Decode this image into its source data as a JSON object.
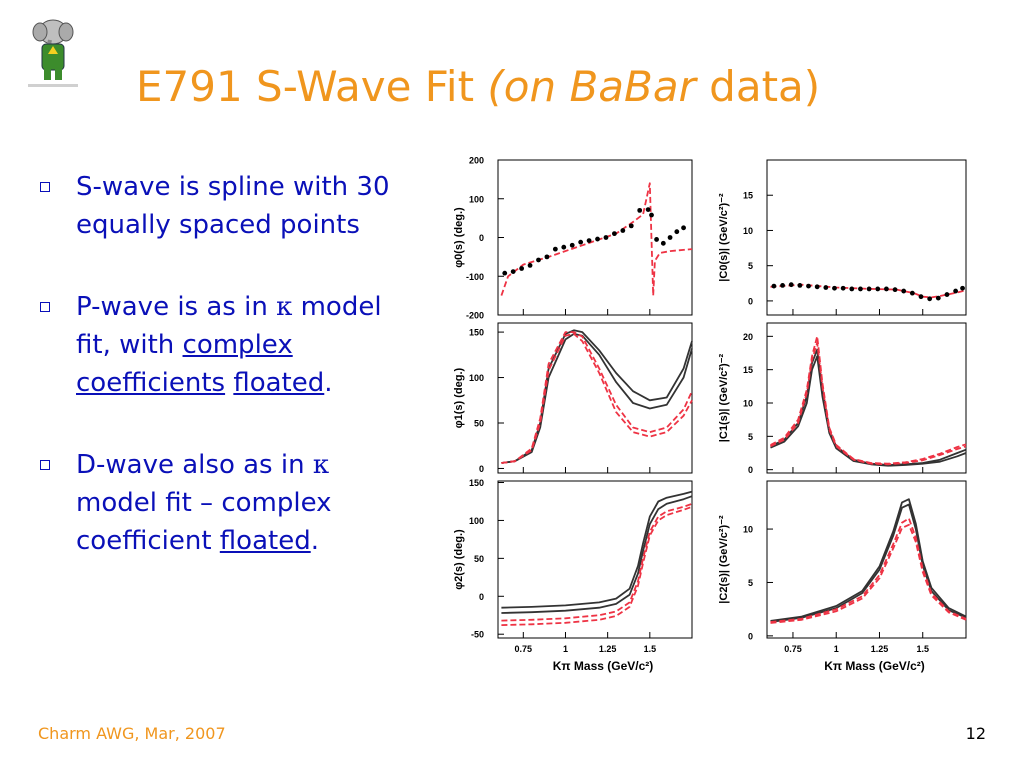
{
  "slide": {
    "title_main": "E791 S-Wave Fit ",
    "title_open": "(on ",
    "title_italic": "BaBar",
    "title_after": " data)",
    "page_number": "12",
    "footer": "Charm AWG, Mar, 2007"
  },
  "colors": {
    "title": "#f0961e",
    "body": "#0a10b8",
    "model_dark": "#333333",
    "model_red": "#ee3344"
  },
  "bullets": [
    {
      "text": "S-wave is spline with 30 equally spaced points"
    },
    {
      "pre": "P-wave is as in ",
      "kappa": "κ",
      "mid": " model fit, with ",
      "link1": "complex coefficients",
      "sep": " ",
      "link2": "floated",
      "post": "."
    },
    {
      "pre": "D-wave also as in ",
      "kappa": "κ",
      "mid": " model fit – complex coefficient ",
      "link": "floated",
      "post": "."
    }
  ],
  "logo": {
    "icon": "babar-elephant-icon"
  },
  "chart_data": [
    {
      "type": "scatter",
      "ylabel": "φ0(s)  (deg.)",
      "ylim": [
        -200,
        200
      ],
      "yticks": [
        -200,
        -100,
        0,
        100,
        200
      ],
      "xlim": [
        0.6,
        1.75
      ],
      "points": [
        [
          0.64,
          -92
        ],
        [
          0.69,
          -88
        ],
        [
          0.74,
          -80
        ],
        [
          0.79,
          -72
        ],
        [
          0.84,
          -58
        ],
        [
          0.89,
          -50
        ],
        [
          0.94,
          -30
        ],
        [
          0.99,
          -25
        ],
        [
          1.04,
          -20
        ],
        [
          1.09,
          -12
        ],
        [
          1.14,
          -8
        ],
        [
          1.19,
          -4
        ],
        [
          1.24,
          0
        ],
        [
          1.29,
          10
        ],
        [
          1.34,
          18
        ],
        [
          1.39,
          30
        ],
        [
          1.44,
          70
        ],
        [
          1.49,
          72
        ],
        [
          1.51,
          58
        ],
        [
          1.54,
          -5
        ],
        [
          1.58,
          -15
        ],
        [
          1.62,
          0
        ],
        [
          1.66,
          15
        ],
        [
          1.7,
          25
        ]
      ],
      "curves": [
        {
          "color": "red",
          "dash": true,
          "x": [
            0.62,
            0.66,
            0.75,
            0.9,
            1.1,
            1.3,
            1.4,
            1.46,
            1.5,
            1.52,
            1.53,
            1.56,
            1.62,
            1.75
          ],
          "y": [
            -150,
            -100,
            -70,
            -50,
            -20,
            10,
            40,
            60,
            140,
            -150,
            -60,
            -40,
            -35,
            -30
          ]
        }
      ]
    },
    {
      "type": "scatter",
      "ylabel": "|C0(s)|  (GeV/c²)⁻²",
      "ylim": [
        -2,
        20
      ],
      "yticks": [
        0,
        5,
        10,
        15
      ],
      "xlim": [
        0.6,
        1.75
      ],
      "points": [
        [
          0.64,
          2.1
        ],
        [
          0.69,
          2.2
        ],
        [
          0.74,
          2.3
        ],
        [
          0.79,
          2.2
        ],
        [
          0.84,
          2.1
        ],
        [
          0.89,
          2.0
        ],
        [
          0.94,
          1.9
        ],
        [
          0.99,
          1.8
        ],
        [
          1.04,
          1.8
        ],
        [
          1.09,
          1.7
        ],
        [
          1.14,
          1.7
        ],
        [
          1.19,
          1.7
        ],
        [
          1.24,
          1.7
        ],
        [
          1.29,
          1.7
        ],
        [
          1.34,
          1.6
        ],
        [
          1.39,
          1.4
        ],
        [
          1.44,
          1.1
        ],
        [
          1.49,
          0.6
        ],
        [
          1.54,
          0.3
        ],
        [
          1.59,
          0.4
        ],
        [
          1.64,
          0.9
        ],
        [
          1.69,
          1.4
        ],
        [
          1.73,
          1.8
        ]
      ],
      "curves": [
        {
          "color": "red",
          "dash": true,
          "x": [
            0.62,
            0.8,
            1.0,
            1.2,
            1.35,
            1.45,
            1.5,
            1.55,
            1.6,
            1.7,
            1.75
          ],
          "y": [
            2.0,
            2.3,
            1.9,
            1.7,
            1.6,
            1.1,
            0.6,
            0.5,
            0.7,
            1.2,
            1.5
          ]
        }
      ]
    },
    {
      "type": "line",
      "ylabel": "φ1(s)  (deg.)",
      "ylim": [
        -5,
        160
      ],
      "yticks": [
        0,
        50,
        100,
        150
      ],
      "xlim": [
        0.6,
        1.75
      ],
      "curves": [
        {
          "color": "dark",
          "x": [
            0.62,
            0.7,
            0.8,
            0.85,
            0.9,
            1.0,
            1.05,
            1.1,
            1.2,
            1.3,
            1.4,
            1.5,
            1.6,
            1.7,
            1.75
          ],
          "y": [
            6,
            8,
            20,
            50,
            110,
            148,
            152,
            150,
            130,
            105,
            85,
            75,
            78,
            110,
            140
          ]
        },
        {
          "color": "dark",
          "x": [
            0.62,
            0.7,
            0.8,
            0.85,
            0.9,
            1.0,
            1.05,
            1.1,
            1.2,
            1.3,
            1.4,
            1.5,
            1.6,
            1.7,
            1.75
          ],
          "y": [
            6,
            8,
            18,
            45,
            100,
            142,
            148,
            146,
            125,
            95,
            72,
            66,
            70,
            100,
            132
          ]
        },
        {
          "color": "red",
          "dash": true,
          "x": [
            0.62,
            0.7,
            0.8,
            0.85,
            0.9,
            1.0,
            1.05,
            1.1,
            1.2,
            1.3,
            1.4,
            1.5,
            1.6,
            1.7,
            1.75
          ],
          "y": [
            6,
            8,
            22,
            55,
            115,
            150,
            150,
            145,
            110,
            70,
            45,
            40,
            45,
            65,
            85
          ]
        },
        {
          "color": "red",
          "dash": true,
          "x": [
            0.62,
            0.7,
            0.8,
            0.85,
            0.9,
            1.0,
            1.05,
            1.1,
            1.2,
            1.3,
            1.4,
            1.5,
            1.6,
            1.7,
            1.75
          ],
          "y": [
            6,
            8,
            20,
            50,
            108,
            146,
            148,
            140,
            105,
            62,
            40,
            35,
            40,
            58,
            75
          ]
        }
      ]
    },
    {
      "type": "line",
      "ylabel": "|C1(s)|  (GeV/c²)⁻²",
      "ylim": [
        -0.5,
        22
      ],
      "yticks": [
        0,
        5,
        10,
        15,
        20
      ],
      "xlim": [
        0.6,
        1.75
      ],
      "curves": [
        {
          "color": "dark",
          "x": [
            0.62,
            0.7,
            0.78,
            0.83,
            0.86,
            0.89,
            0.92,
            0.96,
            1.0,
            1.1,
            1.2,
            1.3,
            1.4,
            1.5,
            1.6,
            1.7,
            1.75
          ],
          "y": [
            3.5,
            4.5,
            7,
            11,
            16,
            18,
            12,
            6,
            3.5,
            1.5,
            0.9,
            0.7,
            0.8,
            1.0,
            1.5,
            2.5,
            3.0
          ]
        },
        {
          "color": "dark",
          "x": [
            0.62,
            0.7,
            0.78,
            0.83,
            0.86,
            0.89,
            0.92,
            0.96,
            1.0,
            1.1,
            1.2,
            1.3,
            1.4,
            1.5,
            1.6,
            1.7,
            1.75
          ],
          "y": [
            3.3,
            4.2,
            6.5,
            10,
            15,
            17,
            11,
            5.5,
            3.2,
            1.3,
            0.8,
            0.6,
            0.7,
            0.9,
            1.2,
            2.0,
            2.5
          ]
        },
        {
          "color": "red",
          "dash": true,
          "x": [
            0.62,
            0.7,
            0.78,
            0.83,
            0.86,
            0.89,
            0.92,
            0.96,
            1.0,
            1.1,
            1.2,
            1.3,
            1.4,
            1.5,
            1.6,
            1.7,
            1.75
          ],
          "y": [
            3.7,
            4.8,
            7.5,
            12,
            17,
            20,
            13,
            6.3,
            3.7,
            1.6,
            1.0,
            0.9,
            1.1,
            1.6,
            2.4,
            3.4,
            3.8
          ]
        },
        {
          "color": "red",
          "dash": true,
          "x": [
            0.62,
            0.7,
            0.78,
            0.83,
            0.86,
            0.89,
            0.92,
            0.96,
            1.0,
            1.1,
            1.2,
            1.3,
            1.4,
            1.5,
            1.6,
            1.7,
            1.75
          ],
          "y": [
            3.5,
            4.5,
            7,
            11.5,
            16.5,
            19,
            12.5,
            6,
            3.5,
            1.5,
            0.9,
            0.8,
            1.0,
            1.4,
            2.2,
            3.1,
            3.5
          ]
        }
      ]
    },
    {
      "type": "line",
      "ylabel": "φ2(s)  (deg.)",
      "ylim": [
        -55,
        152
      ],
      "yticks": [
        -50,
        0,
        50,
        100,
        150
      ],
      "xticks": [
        0.75,
        1,
        1.25,
        1.5
      ],
      "xlabel": "Kπ Mass (GeV/c²)",
      "xlim": [
        0.6,
        1.75
      ],
      "curves": [
        {
          "color": "dark",
          "x": [
            0.62,
            0.8,
            1.0,
            1.2,
            1.3,
            1.38,
            1.43,
            1.46,
            1.5,
            1.55,
            1.6,
            1.7,
            1.75
          ],
          "y": [
            -15,
            -14,
            -12,
            -8,
            -3,
            10,
            40,
            70,
            105,
            125,
            130,
            135,
            138
          ]
        },
        {
          "color": "dark",
          "x": [
            0.62,
            0.8,
            1.0,
            1.2,
            1.3,
            1.38,
            1.43,
            1.46,
            1.5,
            1.55,
            1.6,
            1.7,
            1.75
          ],
          "y": [
            -22,
            -21,
            -19,
            -15,
            -10,
            2,
            30,
            60,
            95,
            115,
            122,
            128,
            132
          ]
        },
        {
          "color": "red",
          "dash": true,
          "x": [
            0.62,
            0.8,
            1.0,
            1.2,
            1.3,
            1.38,
            1.43,
            1.46,
            1.5,
            1.55,
            1.6,
            1.7,
            1.75
          ],
          "y": [
            -32,
            -31,
            -29,
            -25,
            -20,
            -8,
            20,
            50,
            85,
            105,
            112,
            118,
            122
          ]
        },
        {
          "color": "red",
          "dash": true,
          "x": [
            0.62,
            0.8,
            1.0,
            1.2,
            1.3,
            1.38,
            1.43,
            1.46,
            1.5,
            1.55,
            1.6,
            1.7,
            1.75
          ],
          "y": [
            -38,
            -37,
            -35,
            -31,
            -26,
            -14,
            14,
            44,
            80,
            100,
            107,
            114,
            118
          ]
        }
      ]
    },
    {
      "type": "line",
      "ylabel": "|C2(s)|  (GeV/c²)⁻²",
      "ylim": [
        -0.2,
        14.5
      ],
      "yticks": [
        0,
        5,
        10
      ],
      "xticks": [
        0.75,
        1,
        1.25,
        1.5
      ],
      "xlabel": "Kπ Mass (GeV/c²)",
      "xlim": [
        0.6,
        1.75
      ],
      "curves": [
        {
          "color": "dark",
          "x": [
            0.62,
            0.8,
            1.0,
            1.15,
            1.25,
            1.33,
            1.38,
            1.42,
            1.46,
            1.5,
            1.55,
            1.65,
            1.75
          ],
          "y": [
            1.4,
            1.8,
            2.8,
            4.2,
            6.5,
            9.8,
            12.5,
            12.8,
            10.5,
            7,
            4.5,
            2.6,
            1.8
          ]
        },
        {
          "color": "dark",
          "x": [
            0.62,
            0.8,
            1.0,
            1.15,
            1.25,
            1.33,
            1.38,
            1.42,
            1.46,
            1.5,
            1.55,
            1.65,
            1.75
          ],
          "y": [
            1.3,
            1.7,
            2.6,
            4.0,
            6.2,
            9.4,
            12.0,
            12.3,
            10.0,
            6.6,
            4.2,
            2.4,
            1.7
          ]
        },
        {
          "color": "red",
          "dash": true,
          "x": [
            0.62,
            0.8,
            1.0,
            1.15,
            1.25,
            1.33,
            1.38,
            1.42,
            1.46,
            1.5,
            1.55,
            1.65,
            1.75
          ],
          "y": [
            1.3,
            1.6,
            2.5,
            3.7,
            5.7,
            8.6,
            10.6,
            11.0,
            9.2,
            6.3,
            4.0,
            2.3,
            1.6
          ]
        },
        {
          "color": "red",
          "dash": true,
          "x": [
            0.62,
            0.8,
            1.0,
            1.15,
            1.25,
            1.33,
            1.38,
            1.42,
            1.46,
            1.5,
            1.55,
            1.65,
            1.75
          ],
          "y": [
            1.2,
            1.5,
            2.3,
            3.5,
            5.4,
            8.2,
            10.1,
            10.4,
            8.8,
            6.0,
            3.8,
            2.2,
            1.5
          ]
        }
      ]
    }
  ]
}
